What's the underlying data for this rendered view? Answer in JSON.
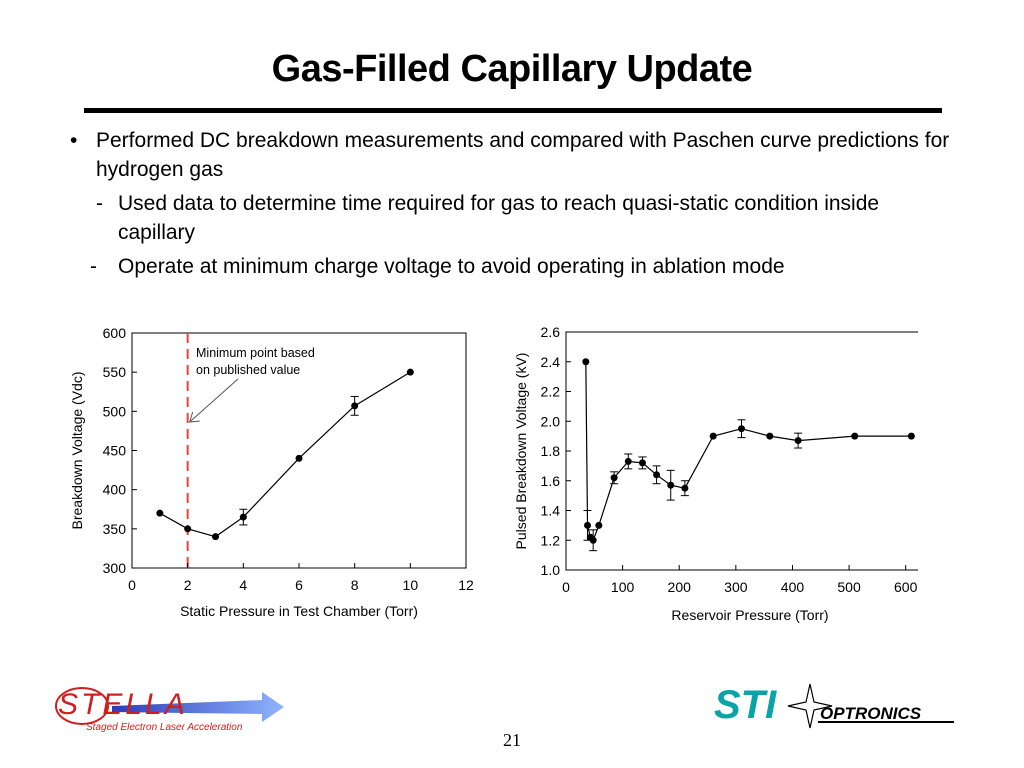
{
  "title": "Gas-Filled Capillary Update",
  "bullets": {
    "main": "Performed DC breakdown measurements and compared with Paschen curve predictions for hydrogen gas",
    "sub1": "Used data to determine time required for gas to reach quasi-static condition inside capillary",
    "sub2": "Operate at minimum charge voltage to avoid operating in ablation mode"
  },
  "page_number": "21",
  "logos": {
    "stella_text": "STELLA",
    "stella_sub": "Staged Electron Laser Acceleration",
    "sti_text": "STI",
    "optronics_text": "OPTRONICS"
  },
  "chart_data": [
    {
      "type": "line",
      "xlabel": "Static Pressure in Test Chamber (Torr)",
      "ylabel": "Breakdown Voltage (Vdc)",
      "xlim": [
        0,
        12
      ],
      "ylim": [
        300,
        600
      ],
      "xticks": [
        "0",
        "2",
        "4",
        "6",
        "8",
        "10",
        "12"
      ],
      "yticks": [
        "300",
        "350",
        "400",
        "450",
        "500",
        "550",
        "600"
      ],
      "x": [
        1,
        2,
        3,
        4,
        6,
        8,
        10
      ],
      "y": [
        370,
        350,
        340,
        365,
        440,
        507,
        550
      ],
      "err": [
        0,
        0,
        0,
        10,
        0,
        12,
        0
      ],
      "reference_line_x": 2,
      "reference_line_color": "#e8453c",
      "annotation": "Minimum point based on published value"
    },
    {
      "type": "line",
      "xlabel": "Reservoir Pressure (Torr)",
      "ylabel": "Pulsed Breakdown Voltage (kV)",
      "xlim": [
        0,
        650
      ],
      "ylim": [
        1.0,
        2.6
      ],
      "xticks": [
        "0",
        "100",
        "200",
        "300",
        "400",
        "500",
        "600"
      ],
      "yticks": [
        "1.0",
        "1.2",
        "1.4",
        "1.6",
        "1.8",
        "2.0",
        "2.2",
        "2.4",
        "2.6"
      ],
      "x": [
        35,
        38,
        43,
        48,
        58,
        85,
        110,
        135,
        160,
        185,
        210,
        260,
        310,
        360,
        410,
        510,
        610
      ],
      "y": [
        2.4,
        1.3,
        1.22,
        1.2,
        1.3,
        1.62,
        1.73,
        1.72,
        1.64,
        1.57,
        1.55,
        1.9,
        1.95,
        1.9,
        1.87,
        1.9,
        1.9
      ],
      "err": [
        0,
        0.1,
        0,
        0.07,
        0,
        0.04,
        0.05,
        0.04,
        0.06,
        0.1,
        0.05,
        0,
        0.06,
        0,
        0.05,
        0,
        0
      ]
    }
  ]
}
